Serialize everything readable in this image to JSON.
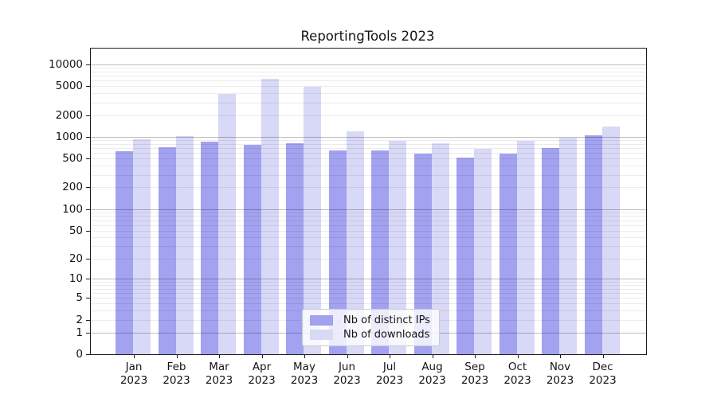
{
  "chart_data": {
    "type": "bar",
    "title": "ReportingTools 2023",
    "x_categories": [
      {
        "month": "Jan",
        "year": "2023"
      },
      {
        "month": "Feb",
        "year": "2023"
      },
      {
        "month": "Mar",
        "year": "2023"
      },
      {
        "month": "Apr",
        "year": "2023"
      },
      {
        "month": "May",
        "year": "2023"
      },
      {
        "month": "Jun",
        "year": "2023"
      },
      {
        "month": "Jul",
        "year": "2023"
      },
      {
        "month": "Aug",
        "year": "2023"
      },
      {
        "month": "Sep",
        "year": "2023"
      },
      {
        "month": "Oct",
        "year": "2023"
      },
      {
        "month": "Nov",
        "year": "2023"
      },
      {
        "month": "Dec",
        "year": "2023"
      }
    ],
    "series": [
      {
        "name": "Nb of distinct IPs",
        "color": "#a2a2f0",
        "values": [
          630,
          710,
          865,
          775,
          810,
          650,
          650,
          590,
          515,
          590,
          700,
          1055
        ]
      },
      {
        "name": "Nb of downloads",
        "color": "#d8d8f7",
        "values": [
          915,
          1020,
          3950,
          6280,
          4950,
          1195,
          885,
          810,
          685,
          875,
          980,
          1400
        ]
      }
    ],
    "y_scale": "log10(1+x)",
    "y_ticks": [
      0,
      1,
      2,
      5,
      10,
      20,
      50,
      100,
      200,
      500,
      1000,
      2000,
      5000,
      10000
    ],
    "y_major_gridlines": [
      1,
      10,
      100,
      1000,
      10000
    ],
    "ylim_top_value": 16500,
    "grid": "on",
    "legend_position": "bottom-center"
  }
}
